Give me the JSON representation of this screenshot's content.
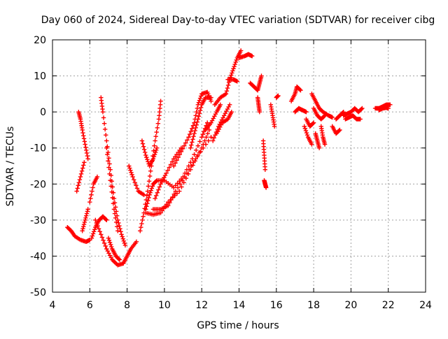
{
  "chart_data": {
    "type": "scatter",
    "title": "Day 060 of 2024, Sidereal Day-to-day VTEC variation (SDTVAR) for receiver cibg",
    "xlabel": "GPS time / hours",
    "ylabel": "SDTVAR / TECUs",
    "xlim": [
      4,
      24
    ],
    "ylim": [
      -50,
      20
    ],
    "xticks": [
      4,
      6,
      8,
      10,
      12,
      14,
      16,
      18,
      20,
      22,
      24
    ],
    "yticks": [
      -50,
      -40,
      -30,
      -20,
      -10,
      0,
      10,
      20
    ],
    "xtick_labels": [
      "4",
      "6",
      "8",
      "10",
      "12",
      "14",
      "16",
      "18",
      "20",
      "22",
      "24"
    ],
    "ytick_labels": [
      "-50",
      "-40",
      "-30",
      "-20",
      "-10",
      "0",
      "10",
      "20"
    ],
    "grid": true,
    "marker": "plus",
    "color": "#ff0000",
    "series": [
      {
        "name": "arc1",
        "points": [
          [
            4.8,
            -32
          ],
          [
            5.0,
            -33
          ],
          [
            5.2,
            -34.5
          ],
          [
            5.5,
            -35.5
          ],
          [
            5.8,
            -36
          ],
          [
            6.0,
            -35.5
          ]
        ]
      },
      {
        "name": "arc2",
        "points": [
          [
            5.3,
            -22
          ],
          [
            5.5,
            -18
          ],
          [
            5.7,
            -14
          ]
        ]
      },
      {
        "name": "arc3",
        "points": [
          [
            5.4,
            0
          ],
          [
            5.5,
            -2
          ],
          [
            5.6,
            -5
          ],
          [
            5.75,
            -9
          ],
          [
            5.9,
            -13
          ]
        ]
      },
      {
        "name": "arc4",
        "points": [
          [
            5.6,
            -33
          ],
          [
            5.75,
            -30
          ],
          [
            5.9,
            -27
          ]
        ]
      },
      {
        "name": "arc5",
        "points": [
          [
            6.1,
            -35
          ],
          [
            6.3,
            -32
          ],
          [
            6.5,
            -30
          ],
          [
            6.7,
            -29
          ],
          [
            6.9,
            -30
          ]
        ]
      },
      {
        "name": "arc6",
        "points": [
          [
            6.0,
            -25
          ],
          [
            6.2,
            -20
          ],
          [
            6.4,
            -18
          ]
        ]
      },
      {
        "name": "arc7",
        "points": [
          [
            6.6,
            4
          ],
          [
            6.7,
            0
          ],
          [
            6.9,
            -8
          ],
          [
            7.1,
            -16
          ],
          [
            7.3,
            -24
          ],
          [
            7.5,
            -30
          ],
          [
            7.7,
            -34
          ],
          [
            7.9,
            -37
          ]
        ]
      },
      {
        "name": "arc8",
        "points": [
          [
            6.3,
            -30
          ],
          [
            6.6,
            -34
          ],
          [
            6.9,
            -38
          ],
          [
            7.2,
            -41
          ],
          [
            7.5,
            -42.5
          ],
          [
            7.8,
            -42
          ]
        ]
      },
      {
        "name": "arc9",
        "points": [
          [
            6.9,
            -10
          ],
          [
            7.1,
            -19
          ],
          [
            7.3,
            -27
          ],
          [
            7.5,
            -33
          ]
        ]
      },
      {
        "name": "arc10",
        "points": [
          [
            7.0,
            -35
          ],
          [
            7.2,
            -38
          ],
          [
            7.4,
            -40
          ],
          [
            7.6,
            -41
          ]
        ]
      },
      {
        "name": "arc11",
        "points": [
          [
            7.8,
            -42
          ],
          [
            8.0,
            -40
          ],
          [
            8.2,
            -38
          ],
          [
            8.5,
            -36
          ]
        ]
      },
      {
        "name": "arc12",
        "points": [
          [
            8.1,
            -15
          ],
          [
            8.3,
            -18
          ],
          [
            8.6,
            -22
          ],
          [
            8.9,
            -23
          ]
        ]
      },
      {
        "name": "arc13",
        "points": [
          [
            8.7,
            -33
          ],
          [
            8.9,
            -28
          ],
          [
            9.1,
            -22
          ],
          [
            9.3,
            -15
          ],
          [
            9.5,
            -8
          ],
          [
            9.7,
            -2
          ],
          [
            9.8,
            3
          ]
        ]
      },
      {
        "name": "arc14",
        "points": [
          [
            8.8,
            -8
          ],
          [
            9.0,
            -12
          ],
          [
            9.2,
            -15
          ],
          [
            9.4,
            -13
          ],
          [
            9.6,
            -10
          ]
        ]
      },
      {
        "name": "arc15",
        "points": [
          [
            9.0,
            -27
          ],
          [
            9.2,
            -23
          ],
          [
            9.4,
            -20
          ],
          [
            9.6,
            -19
          ],
          [
            10.0,
            -19
          ],
          [
            10.5,
            -21
          ],
          [
            11.0,
            -18
          ],
          [
            11.5,
            -13
          ],
          [
            12.0,
            -7
          ],
          [
            12.3,
            -3
          ]
        ]
      },
      {
        "name": "arc16",
        "points": [
          [
            9.0,
            -28
          ],
          [
            9.4,
            -28.5
          ],
          [
            9.8,
            -28
          ],
          [
            10.2,
            -25
          ],
          [
            10.8,
            -22
          ],
          [
            11.4,
            -16
          ],
          [
            12.0,
            -10
          ],
          [
            12.4,
            -5
          ]
        ]
      },
      {
        "name": "arc17",
        "points": [
          [
            9.4,
            -27
          ],
          [
            9.8,
            -27
          ],
          [
            10.2,
            -26
          ],
          [
            10.6,
            -22
          ],
          [
            11.2,
            -17
          ],
          [
            11.8,
            -12
          ],
          [
            12.5,
            -7
          ]
        ]
      },
      {
        "name": "arc18",
        "points": [
          [
            9.5,
            -24
          ],
          [
            9.8,
            -20
          ],
          [
            10.1,
            -17
          ],
          [
            10.5,
            -13
          ],
          [
            10.9,
            -10
          ]
        ]
      },
      {
        "name": "arc19",
        "points": [
          [
            10.5,
            -15
          ],
          [
            10.9,
            -11
          ],
          [
            11.3,
            -7
          ],
          [
            11.6,
            -3
          ],
          [
            11.8,
            2
          ],
          [
            12.0,
            5
          ],
          [
            12.3,
            5.5
          ],
          [
            12.5,
            3
          ]
        ]
      },
      {
        "name": "arc20",
        "points": [
          [
            11.4,
            -10
          ],
          [
            11.6,
            -6
          ],
          [
            11.8,
            -2
          ],
          [
            12.0,
            2
          ],
          [
            12.2,
            4
          ],
          [
            12.5,
            4
          ]
        ]
      },
      {
        "name": "arc21",
        "points": [
          [
            12.2,
            -5
          ],
          [
            12.5,
            -3
          ],
          [
            12.8,
            0
          ],
          [
            13.0,
            2
          ]
        ]
      },
      {
        "name": "arc22",
        "points": [
          [
            12.6,
            -8
          ],
          [
            12.9,
            -4
          ],
          [
            13.2,
            -1
          ],
          [
            13.5,
            2
          ]
        ]
      },
      {
        "name": "arc23",
        "points": [
          [
            12.7,
            2
          ],
          [
            13.0,
            4
          ],
          [
            13.3,
            5
          ]
        ]
      },
      {
        "name": "arc24",
        "points": [
          [
            12.8,
            -6
          ],
          [
            13.1,
            -3
          ],
          [
            13.4,
            -2
          ],
          [
            13.6,
            0
          ]
        ]
      },
      {
        "name": "arc25",
        "points": [
          [
            13.3,
            5
          ],
          [
            13.5,
            9
          ],
          [
            13.7,
            12
          ],
          [
            13.9,
            15
          ],
          [
            14.1,
            17
          ]
        ]
      },
      {
        "name": "arc26",
        "points": [
          [
            13.4,
            9
          ],
          [
            13.7,
            9
          ],
          [
            13.9,
            8.5
          ]
        ]
      },
      {
        "name": "arc27",
        "points": [
          [
            14.0,
            15
          ],
          [
            14.3,
            15.5
          ],
          [
            14.5,
            16
          ],
          [
            14.7,
            15.5
          ]
        ]
      },
      {
        "name": "arc28",
        "points": [
          [
            14.6,
            8
          ],
          [
            14.8,
            7
          ],
          [
            15.0,
            6
          ],
          [
            15.1,
            8
          ],
          [
            15.2,
            10
          ]
        ]
      },
      {
        "name": "arc29",
        "points": [
          [
            15.0,
            4
          ],
          [
            15.05,
            2
          ],
          [
            15.1,
            0
          ]
        ]
      },
      {
        "name": "arc30",
        "points": [
          [
            15.3,
            -8
          ],
          [
            15.35,
            -12
          ],
          [
            15.4,
            -16
          ]
        ]
      },
      {
        "name": "arc31",
        "points": [
          [
            15.35,
            -19
          ],
          [
            15.4,
            -20
          ],
          [
            15.45,
            -21
          ]
        ]
      },
      {
        "name": "arc32",
        "points": [
          [
            15.7,
            2
          ],
          [
            15.8,
            -1
          ],
          [
            15.9,
            -4
          ]
        ]
      },
      {
        "name": "arc33",
        "points": [
          [
            16.0,
            4
          ],
          [
            16.1,
            4.5
          ]
        ]
      },
      {
        "name": "arc34",
        "points": [
          [
            16.8,
            3
          ],
          [
            17.0,
            5
          ],
          [
            17.1,
            7
          ],
          [
            17.3,
            6
          ]
        ]
      },
      {
        "name": "arc35",
        "points": [
          [
            17.0,
            0
          ],
          [
            17.2,
            1
          ],
          [
            17.4,
            0.5
          ],
          [
            17.6,
            0
          ]
        ]
      },
      {
        "name": "arc36",
        "points": [
          [
            17.5,
            -4
          ],
          [
            17.7,
            -7
          ],
          [
            17.9,
            -9
          ]
        ]
      },
      {
        "name": "arc37",
        "points": [
          [
            17.6,
            -2
          ],
          [
            17.8,
            -4
          ],
          [
            18.0,
            -3
          ]
        ]
      },
      {
        "name": "arc38",
        "points": [
          [
            17.9,
            5
          ],
          [
            18.1,
            3
          ],
          [
            18.3,
            1
          ],
          [
            18.5,
            0
          ],
          [
            18.8,
            -1
          ],
          [
            19.0,
            -1.5
          ]
        ]
      },
      {
        "name": "arc39",
        "points": [
          [
            18.0,
            1
          ],
          [
            18.2,
            -1
          ],
          [
            18.4,
            -2
          ],
          [
            18.6,
            -1
          ]
        ]
      },
      {
        "name": "arc40",
        "points": [
          [
            18.1,
            -6
          ],
          [
            18.2,
            -8
          ],
          [
            18.3,
            -10
          ]
        ]
      },
      {
        "name": "arc41",
        "points": [
          [
            18.4,
            -4
          ],
          [
            18.5,
            -7
          ],
          [
            18.6,
            -9
          ]
        ]
      },
      {
        "name": "arc42",
        "points": [
          [
            19.0,
            -4
          ],
          [
            19.2,
            -6
          ],
          [
            19.4,
            -5
          ]
        ]
      },
      {
        "name": "arc43",
        "points": [
          [
            19.2,
            -2
          ],
          [
            19.4,
            -1
          ],
          [
            19.6,
            0
          ]
        ]
      },
      {
        "name": "arc44",
        "points": [
          [
            19.6,
            -1
          ],
          [
            19.8,
            -0.5
          ],
          [
            20.0,
            0
          ],
          [
            20.2,
            1
          ],
          [
            20.4,
            0
          ],
          [
            20.6,
            1
          ]
        ]
      },
      {
        "name": "arc45",
        "points": [
          [
            19.7,
            -2
          ],
          [
            19.9,
            -1.5
          ],
          [
            20.1,
            -1
          ],
          [
            20.3,
            -2
          ],
          [
            20.5,
            -2
          ]
        ]
      },
      {
        "name": "arc46",
        "points": [
          [
            21.3,
            1
          ],
          [
            21.5,
            1
          ],
          [
            21.7,
            1.5
          ],
          [
            21.9,
            2
          ],
          [
            22.1,
            2
          ]
        ]
      },
      {
        "name": "arc47",
        "points": [
          [
            21.5,
            0.5
          ],
          [
            21.7,
            1
          ],
          [
            21.9,
            1.2
          ],
          [
            22.0,
            1
          ]
        ]
      }
    ]
  }
}
